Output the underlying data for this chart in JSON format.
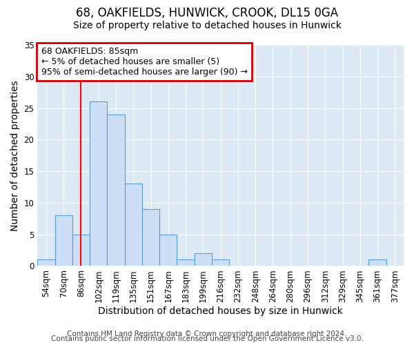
{
  "title": "68, OAKFIELDS, HUNWICK, CROOK, DL15 0GA",
  "subtitle": "Size of property relative to detached houses in Hunwick",
  "xlabel": "Distribution of detached houses by size in Hunwick",
  "ylabel": "Number of detached properties",
  "categories": [
    "54sqm",
    "70sqm",
    "86sqm",
    "102sqm",
    "119sqm",
    "135sqm",
    "151sqm",
    "167sqm",
    "183sqm",
    "199sqm",
    "216sqm",
    "232sqm",
    "248sqm",
    "264sqm",
    "280sqm",
    "296sqm",
    "312sqm",
    "329sqm",
    "345sqm",
    "361sqm",
    "377sqm"
  ],
  "values": [
    1,
    8,
    5,
    26,
    24,
    13,
    9,
    5,
    1,
    2,
    1,
    0,
    0,
    0,
    0,
    0,
    0,
    0,
    0,
    1,
    0
  ],
  "bar_color": "#ccdff5",
  "bar_edge_color": "#5b9bd5",
  "red_line_index": 2,
  "ylim": [
    0,
    35
  ],
  "yticks": [
    0,
    5,
    10,
    15,
    20,
    25,
    30,
    35
  ],
  "annotation_line1": "68 OAKFIELDS: 85sqm",
  "annotation_line2": "← 5% of detached houses are smaller (5)",
  "annotation_line3": "95% of semi-detached houses are larger (90) →",
  "annotation_box_color": "#ffffff",
  "annotation_box_edge_color": "#cc0000",
  "footer_line1": "Contains HM Land Registry data © Crown copyright and database right 2024.",
  "footer_line2": "Contains public sector information licensed under the Open Government Licence v3.0.",
  "fig_background_color": "#ffffff",
  "plot_background_color": "#dce9f5",
  "grid_color": "#ffffff",
  "title_fontsize": 12,
  "subtitle_fontsize": 10,
  "axis_label_fontsize": 10,
  "tick_fontsize": 8.5,
  "annotation_fontsize": 9,
  "footer_fontsize": 7.5
}
